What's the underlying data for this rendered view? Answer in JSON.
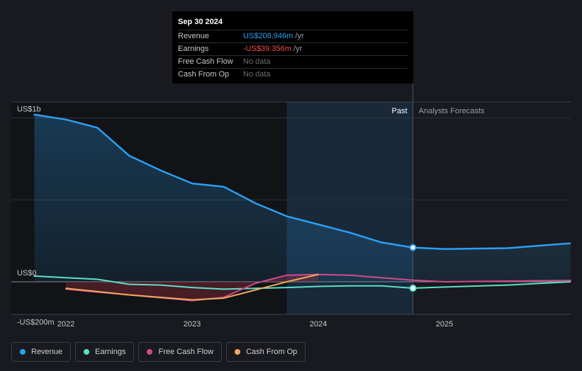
{
  "tooltip": {
    "date": "Sep 30 2024",
    "rows": [
      {
        "label": "Revenue",
        "value": "US$208.946m",
        "unit": " /yr"
      },
      {
        "label": "Earnings",
        "value": "-US$39.356m",
        "unit": " /yr"
      },
      {
        "label": "Free Cash Flow",
        "value": "No data"
      },
      {
        "label": "Cash From Op",
        "value": "No data"
      }
    ]
  },
  "legend": [
    {
      "label": "Revenue",
      "color": "#2c9ff0"
    },
    {
      "label": "Earnings",
      "color": "#5de0c8"
    },
    {
      "label": "Free Cash Flow",
      "color": "#cf4a8c"
    },
    {
      "label": "Cash From Op",
      "color": "#f0a85a"
    }
  ],
  "chart_data": {
    "type": "line",
    "y_tick_labels": [
      "US$1b",
      "US$0",
      "-US$200m"
    ],
    "y_ticks": [
      1000,
      0,
      -200
    ],
    "x_tick_labels": [
      "2022",
      "2023",
      "2024",
      "2025"
    ],
    "ylim": [
      -200,
      1100
    ],
    "xlim": [
      2021.6,
      2026.0
    ],
    "past_label": "Past",
    "forecast_label": "Analysts Forecasts",
    "past_start": 2023.75,
    "forecast_start": 2024.75,
    "series": [
      {
        "name": "Revenue",
        "color": "#2c9ff0",
        "points": [
          [
            2021.75,
            1020
          ],
          [
            2022.0,
            990
          ],
          [
            2022.25,
            940
          ],
          [
            2022.5,
            770
          ],
          [
            2022.75,
            680
          ],
          [
            2023.0,
            600
          ],
          [
            2023.25,
            580
          ],
          [
            2023.5,
            480
          ],
          [
            2023.75,
            400
          ],
          [
            2024.0,
            350
          ],
          [
            2024.25,
            300
          ],
          [
            2024.5,
            240
          ],
          [
            2024.75,
            209
          ]
        ],
        "forecast": [
          [
            2024.75,
            209
          ],
          [
            2025.0,
            200
          ],
          [
            2025.5,
            205
          ],
          [
            2026.0,
            235
          ]
        ]
      },
      {
        "name": "Earnings",
        "color": "#5de0c8",
        "points": [
          [
            2021.75,
            35
          ],
          [
            2022.0,
            25
          ],
          [
            2022.25,
            15
          ],
          [
            2022.5,
            -15
          ],
          [
            2022.75,
            -20
          ],
          [
            2023.0,
            -35
          ],
          [
            2023.25,
            -45
          ],
          [
            2023.5,
            -40
          ],
          [
            2023.75,
            -35
          ],
          [
            2024.0,
            -28
          ],
          [
            2024.25,
            -25
          ],
          [
            2024.5,
            -25
          ],
          [
            2024.75,
            -39
          ]
        ],
        "forecast": [
          [
            2024.75,
            -39
          ],
          [
            2025.0,
            -32
          ],
          [
            2025.5,
            -20
          ],
          [
            2026.0,
            0
          ]
        ]
      },
      {
        "name": "Free Cash Flow",
        "color": "#cf4a8c",
        "points": [
          [
            2022.0,
            -45
          ],
          [
            2022.5,
            -80
          ],
          [
            2023.0,
            -115
          ],
          [
            2023.25,
            -95
          ],
          [
            2023.5,
            -10
          ],
          [
            2023.75,
            40
          ],
          [
            2024.0,
            45
          ],
          [
            2024.25,
            40
          ],
          [
            2024.5,
            25
          ],
          [
            2024.75,
            10
          ],
          [
            2025.0,
            0
          ],
          [
            2026.0,
            8
          ]
        ]
      },
      {
        "name": "Cash From Op",
        "color": "#f0a85a",
        "points": [
          [
            2022.0,
            -40
          ],
          [
            2022.5,
            -80
          ],
          [
            2023.0,
            -110
          ],
          [
            2023.25,
            -100
          ],
          [
            2023.5,
            -50
          ],
          [
            2023.75,
            0
          ],
          [
            2024.0,
            45
          ]
        ]
      }
    ]
  }
}
